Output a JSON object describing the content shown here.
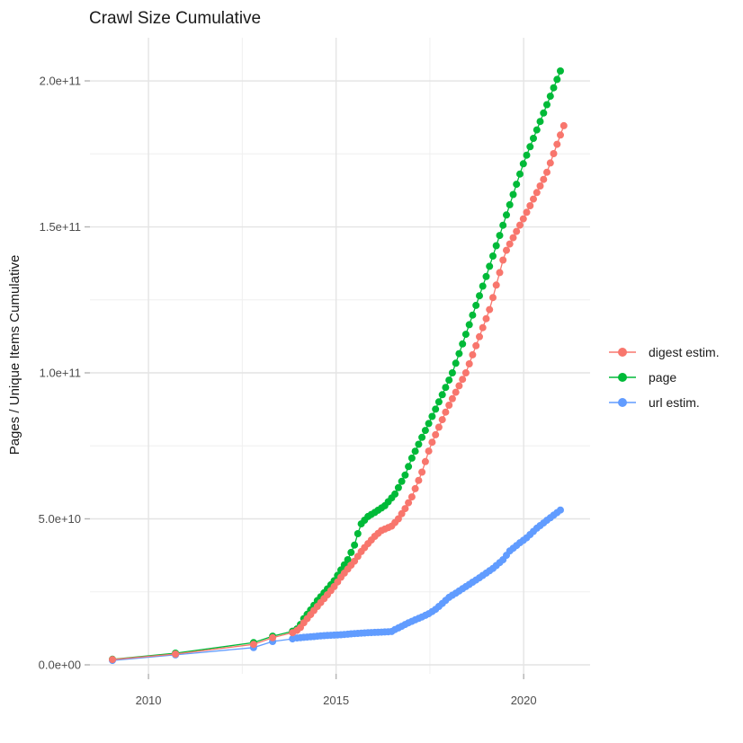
{
  "title": "Crawl Size Cumulative",
  "axes": {
    "y_label": "Pages / Unique Items Cumulative",
    "x_ticks": [
      {
        "label": "2010",
        "value": 2010
      },
      {
        "label": "2015",
        "value": 2015
      },
      {
        "label": "2020",
        "value": 2020
      }
    ],
    "y_ticks": [
      {
        "label": "0.0e+00",
        "value": 0
      },
      {
        "label": "5.0e+10",
        "value": 50
      },
      {
        "label": "1.0e+11",
        "value": 100
      },
      {
        "label": "1.5e+11",
        "value": 150
      },
      {
        "label": "2.0e+11",
        "value": 200
      }
    ],
    "x_minor": [
      2012.5,
      2017.5
    ],
    "y_minor": [
      25,
      75,
      125,
      175
    ],
    "x_domain": [
      2008.44,
      2021.77
    ],
    "y_domain_e9": [
      -3.08,
      214.78
    ],
    "grid": true
  },
  "legend": {
    "position": "right",
    "items": [
      {
        "label": "digest estim.",
        "color": "#F8766D"
      },
      {
        "label": "page",
        "color": "#00BA38"
      },
      {
        "label": "url estim.",
        "color": "#619CFF"
      }
    ]
  },
  "colors": {
    "digest": "#F8766D",
    "page": "#00BA38",
    "url": "#619CFF",
    "grid_major": "#E4E4E4",
    "grid_minor": "#EFEFEF",
    "tick_mark": "#B3B3B3",
    "tick_text": "#4d4d4d"
  },
  "chart_data": {
    "type": "scatter",
    "title": "Crawl Size Cumulative",
    "ylabel": "Pages / Unique Items Cumulative",
    "xlabel": "",
    "y_values_unit": "billions (1e9) of pages / unique items, cumulative",
    "x_values_unit": "calendar year (crawl date)",
    "legend_position": "right-center",
    "series": [
      {
        "name": "page",
        "color": "#00BA38",
        "sparse_x": [
          2009.04,
          2010.72,
          2012.8,
          2013.31,
          2013.84
        ],
        "dense": {
          "start": 2013.96,
          "step": 0.09,
          "end": 2021.03
        },
        "anchors": [
          [
            2009.04,
            1.9
          ],
          [
            2010.72,
            4.0
          ],
          [
            2012.8,
            7.6
          ],
          [
            2013.31,
            9.8
          ],
          [
            2013.84,
            11.5
          ],
          [
            2013.96,
            12.3
          ],
          [
            2014.05,
            13.8
          ],
          [
            2014.14,
            15.8
          ],
          [
            2014.32,
            18.8
          ],
          [
            2014.5,
            22.0
          ],
          [
            2014.77,
            26.0
          ],
          [
            2014.95,
            28.8
          ],
          [
            2015.13,
            32.5
          ],
          [
            2015.31,
            36.0
          ],
          [
            2015.49,
            41.0
          ],
          [
            2015.65,
            48.0
          ],
          [
            2015.85,
            50.8
          ],
          [
            2016.03,
            52.2
          ],
          [
            2016.3,
            54.5
          ],
          [
            2016.57,
            58.5
          ],
          [
            2016.84,
            65.0
          ],
          [
            2017.02,
            70.8
          ],
          [
            2017.51,
            83.7
          ],
          [
            2018.1,
            100.0
          ],
          [
            2019.0,
            133.0
          ],
          [
            2020.0,
            172.0
          ],
          [
            2021.03,
            205.0
          ]
        ]
      },
      {
        "name": "url estim.",
        "color": "#619CFF",
        "sparse_x": [
          2009.04,
          2010.72,
          2012.8,
          2013.31,
          2013.84
        ],
        "dense": {
          "start": 2013.96,
          "step": 0.09,
          "end": 2021.0
        },
        "anchors": [
          [
            2009.04,
            1.5
          ],
          [
            2010.72,
            3.4
          ],
          [
            2012.8,
            5.9
          ],
          [
            2013.31,
            8.0
          ],
          [
            2013.84,
            8.9
          ],
          [
            2013.96,
            9.2
          ],
          [
            2014.32,
            9.6
          ],
          [
            2014.68,
            10.0
          ],
          [
            2015.13,
            10.3
          ],
          [
            2015.49,
            10.7
          ],
          [
            2015.85,
            11.0
          ],
          [
            2016.21,
            11.2
          ],
          [
            2016.48,
            11.4
          ],
          [
            2016.57,
            12.1
          ],
          [
            2016.75,
            13.2
          ],
          [
            2016.93,
            14.4
          ],
          [
            2017.11,
            15.4
          ],
          [
            2017.29,
            16.4
          ],
          [
            2017.47,
            17.5
          ],
          [
            2017.65,
            19.0
          ],
          [
            2017.83,
            21.0
          ],
          [
            2018.01,
            23.1
          ],
          [
            2018.28,
            25.3
          ],
          [
            2018.46,
            26.8
          ],
          [
            2018.82,
            29.8
          ],
          [
            2019.18,
            33.0
          ],
          [
            2019.45,
            36.0
          ],
          [
            2019.63,
            39.0
          ],
          [
            2019.9,
            41.8
          ],
          [
            2020.08,
            43.5
          ],
          [
            2020.35,
            46.8
          ],
          [
            2020.62,
            49.5
          ],
          [
            2021.0,
            53.2
          ]
        ]
      },
      {
        "name": "digest estim.",
        "color": "#F8766D",
        "sparse_x": [
          2009.04,
          2010.72,
          2012.8,
          2013.31,
          2013.84
        ],
        "dense": {
          "start": 2013.96,
          "step": 0.09,
          "end": 2021.08
        },
        "anchors": [
          [
            2009.04,
            1.8
          ],
          [
            2010.72,
            3.7
          ],
          [
            2012.8,
            7.0
          ],
          [
            2013.31,
            9.3
          ],
          [
            2013.84,
            11.0
          ],
          [
            2013.96,
            11.8
          ],
          [
            2014.05,
            12.8
          ],
          [
            2014.14,
            14.4
          ],
          [
            2014.32,
            17.2
          ],
          [
            2014.5,
            20.0
          ],
          [
            2014.77,
            24.0
          ],
          [
            2014.95,
            26.8
          ],
          [
            2015.13,
            30.0
          ],
          [
            2015.31,
            32.8
          ],
          [
            2015.49,
            35.5
          ],
          [
            2015.67,
            38.8
          ],
          [
            2015.85,
            41.5
          ],
          [
            2016.03,
            44.0
          ],
          [
            2016.21,
            46.0
          ],
          [
            2016.48,
            47.5
          ],
          [
            2016.66,
            50.0
          ],
          [
            2016.84,
            53.5
          ],
          [
            2017.02,
            57.5
          ],
          [
            2017.29,
            66.0
          ],
          [
            2017.51,
            74.8
          ],
          [
            2017.96,
            87.7
          ],
          [
            2018.46,
            100.0
          ],
          [
            2019.1,
            122.0
          ],
          [
            2019.5,
            141.0
          ],
          [
            2020.0,
            153.0
          ],
          [
            2020.6,
            168.0
          ],
          [
            2021.08,
            185.0
          ]
        ]
      }
    ]
  }
}
